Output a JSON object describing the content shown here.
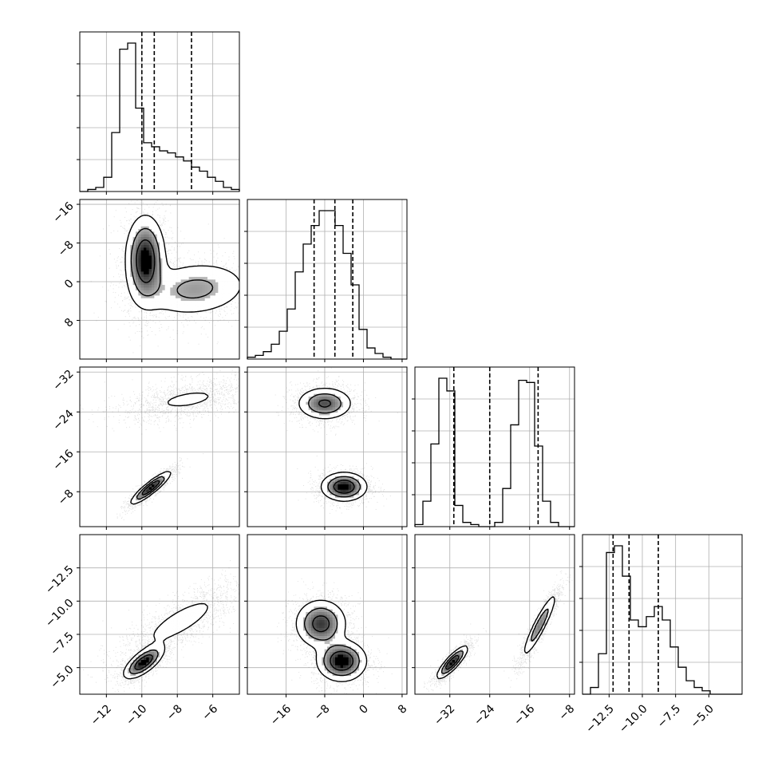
{
  "chart_data": {
    "type": "corner",
    "n_params": 4,
    "quantile_style": "dashed vertical lines (16%, 50%, 84%)",
    "params": [
      {
        "range": [
          -13.5,
          -4.5
        ],
        "ticks": [
          -12,
          -10,
          -8,
          -6
        ],
        "quantiles": [
          -10.0,
          -9.3,
          -7.2
        ]
      },
      {
        "range": [
          -24,
          9
        ],
        "ticks": [
          -16,
          -8,
          0,
          8
        ],
        "quantiles": [
          -10.2,
          -5.9,
          -2.2
        ]
      },
      {
        "range": [
          -39,
          -7
        ],
        "ticks": [
          -32,
          -24,
          -16,
          -8
        ],
        "quantiles": [
          -31.2,
          -24.0,
          -14.3
        ]
      },
      {
        "range": [
          -14.5,
          -2.5
        ],
        "ticks": [
          -12.5,
          -10.0,
          -7.5,
          -5.0
        ],
        "quantiles": [
          -12.2,
          -11.0,
          -8.8
        ]
      }
    ],
    "tick_labels": {
      "x": [
        [
          "−12",
          "−10",
          "−8",
          "−6"
        ],
        [
          "−16",
          "−8",
          "0",
          "8"
        ],
        [
          "−32",
          "−24",
          "−16",
          "−8"
        ],
        [
          "−12.5",
          "−10.0",
          "−7.5",
          "−5.0"
        ]
      ],
      "y": [
        null,
        [
          "8",
          "0",
          "−8",
          "−16"
        ],
        [
          "−8",
          "−16",
          "−24",
          "−32"
        ],
        [
          "−5.0",
          "−7.5",
          "−10.0",
          "−12.5"
        ]
      ]
    },
    "histograms": [
      {
        "param": 0,
        "bins": 20,
        "values": [
          0,
          1,
          2,
          7,
          29,
          70,
          73,
          41,
          24,
          22,
          20,
          19,
          17,
          15,
          12,
          10,
          7,
          5,
          2,
          1
        ]
      },
      {
        "param": 1,
        "bins": 20,
        "values": [
          1,
          2,
          4,
          8,
          15,
          27,
          47,
          62,
          72,
          80,
          80,
          72,
          57,
          40,
          16,
          6,
          3,
          1,
          0,
          0
        ]
      },
      {
        "param": 2,
        "bins": 20,
        "values": [
          1,
          12,
          39,
          70,
          64,
          10,
          2,
          1,
          0,
          0,
          2,
          18,
          48,
          69,
          68,
          38,
          12,
          2,
          0,
          0
        ]
      },
      {
        "param": 3,
        "bins": 20,
        "values": [
          0,
          2,
          12,
          42,
          44,
          35,
          22,
          20,
          23,
          26,
          22,
          14,
          8,
          4,
          2,
          1,
          0,
          0,
          0,
          0
        ]
      }
    ],
    "pairs": [
      {
        "x": 0,
        "y": 1,
        "modes": [
          {
            "cx": -9.8,
            "cy": -3.5,
            "sx": 0.55,
            "sy": 4.5,
            "rho": 0.0,
            "w": 0.55
          },
          {
            "cx": -7.0,
            "cy": -9.5,
            "sx": 1.6,
            "sy": 3.0,
            "rho": 0.15,
            "w": 0.45
          }
        ]
      },
      {
        "x": 0,
        "y": 2,
        "modes": [
          {
            "cx": -9.5,
            "cy": -31.2,
            "sx": 0.55,
            "sy": 1.6,
            "rho": 0.9,
            "w": 0.5
          },
          {
            "cx": -7.4,
            "cy": -13.5,
            "sx": 1.6,
            "sy": 1.8,
            "rho": 0.5,
            "w": 0.5
          }
        ]
      },
      {
        "x": 1,
        "y": 2,
        "modes": [
          {
            "cx": -4.0,
            "cy": -31.0,
            "sx": 2.3,
            "sy": 1.4,
            "rho": 0.0,
            "w": 0.5
          },
          {
            "cx": -8.0,
            "cy": -14.3,
            "sx": 2.8,
            "sy": 1.6,
            "rho": 0.0,
            "w": 0.5
          }
        ]
      },
      {
        "x": 0,
        "y": 3,
        "modes": [
          {
            "cx": -9.9,
            "cy": -12.1,
            "sx": 0.55,
            "sy": 0.6,
            "rho": 0.7,
            "w": 0.5
          },
          {
            "cx": -7.8,
            "cy": -9.0,
            "sx": 1.5,
            "sy": 1.3,
            "rho": 0.8,
            "w": 0.5
          }
        ]
      },
      {
        "x": 1,
        "y": 3,
        "modes": [
          {
            "cx": -4.5,
            "cy": -12.0,
            "sx": 2.5,
            "sy": 0.75,
            "rho": 0.0,
            "w": 0.5
          },
          {
            "cx": -8.8,
            "cy": -9.2,
            "sx": 2.6,
            "sy": 0.9,
            "rho": 0.0,
            "w": 0.5
          }
        ]
      },
      {
        "x": 2,
        "y": 3,
        "modes": [
          {
            "cx": -31.5,
            "cy": -12.1,
            "sx": 1.5,
            "sy": 0.6,
            "rho": 0.85,
            "w": 0.5
          },
          {
            "cx": -14.0,
            "cy": -9.3,
            "sx": 1.7,
            "sy": 1.2,
            "rho": 0.92,
            "w": 0.5
          }
        ]
      }
    ],
    "grid": true
  }
}
